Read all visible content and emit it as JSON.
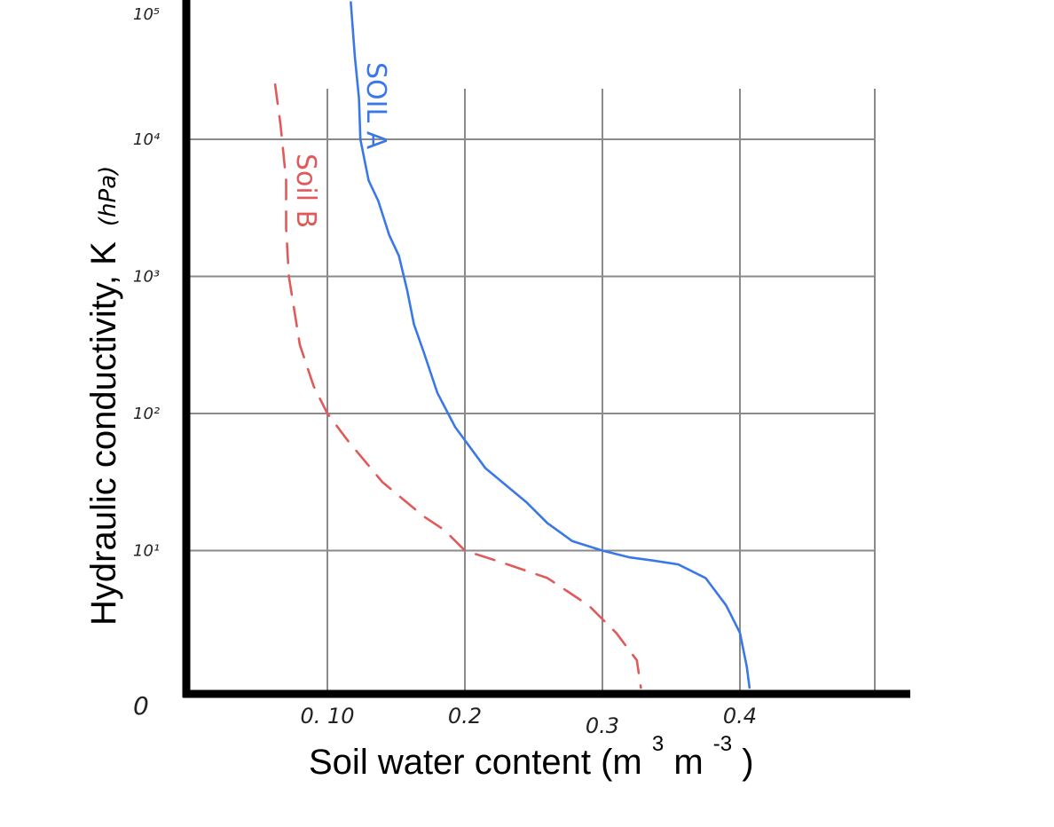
{
  "chart_data": {
    "type": "line",
    "xlabel": "Soil water content (m",
    "xlabel_sup1": "3",
    "xlabel_mid": " m",
    "xlabel_sup2": "-3",
    "xlabel_end": ")",
    "ylabel": "Hydraulic conductivity, K",
    "ylabel_unit": "(hPa)",
    "x_ticks": [
      "0. 10",
      "0.2",
      "0.3",
      "0.4"
    ],
    "x_tick_values": [
      0.1,
      0.2,
      0.3,
      0.4
    ],
    "y_ticks": [
      "0",
      "10¹",
      "10²",
      "10³",
      "10⁴",
      "10⁵"
    ],
    "y_tick_values": [
      0,
      1,
      2,
      3,
      4,
      5
    ],
    "xlim": [
      0.0,
      0.42
    ],
    "ylim": [
      0,
      5
    ],
    "y_scale": "log",
    "grid": true,
    "series": [
      {
        "name": "Soil A",
        "color": "#3b78e7",
        "style": "solid",
        "points": [
          [
            0.117,
            5.0
          ],
          [
            0.12,
            4.6
          ],
          [
            0.123,
            4.3
          ],
          [
            0.124,
            4.0
          ],
          [
            0.13,
            3.7
          ],
          [
            0.137,
            3.55
          ],
          [
            0.145,
            3.3
          ],
          [
            0.152,
            3.15
          ],
          [
            0.158,
            2.9
          ],
          [
            0.163,
            2.65
          ],
          [
            0.17,
            2.45
          ],
          [
            0.18,
            2.15
          ],
          [
            0.193,
            1.9
          ],
          [
            0.215,
            1.6
          ],
          [
            0.245,
            1.35
          ],
          [
            0.26,
            1.2
          ],
          [
            0.278,
            1.07
          ],
          [
            0.3,
            1.0
          ],
          [
            0.32,
            0.95
          ],
          [
            0.335,
            0.93
          ],
          [
            0.355,
            0.9
          ],
          [
            0.375,
            0.8
          ],
          [
            0.39,
            0.6
          ],
          [
            0.4,
            0.4
          ],
          [
            0.405,
            0.15
          ],
          [
            0.407,
            0.0
          ]
        ]
      },
      {
        "name": "Soil B",
        "color": "#e05a5a",
        "style": "dashed",
        "points": [
          [
            0.062,
            4.4
          ],
          [
            0.066,
            4.1
          ],
          [
            0.07,
            3.7
          ],
          [
            0.07,
            3.35
          ],
          [
            0.072,
            3.0
          ],
          [
            0.08,
            2.5
          ],
          [
            0.09,
            2.2
          ],
          [
            0.1,
            2.0
          ],
          [
            0.115,
            1.8
          ],
          [
            0.14,
            1.5
          ],
          [
            0.17,
            1.25
          ],
          [
            0.185,
            1.15
          ],
          [
            0.2,
            1.0
          ],
          [
            0.225,
            0.92
          ],
          [
            0.26,
            0.8
          ],
          [
            0.29,
            0.6
          ],
          [
            0.31,
            0.4
          ],
          [
            0.325,
            0.2
          ],
          [
            0.328,
            0.0
          ]
        ]
      }
    ],
    "annotations": [
      {
        "text": "SOIL A",
        "series": "Soil A"
      },
      {
        "text": "Soil B",
        "series": "Soil B"
      }
    ]
  }
}
